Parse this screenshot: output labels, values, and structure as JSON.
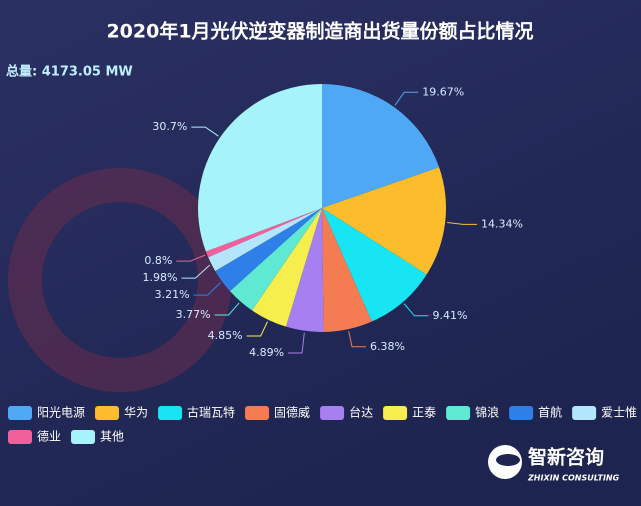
{
  "chart_data": {
    "type": "pie",
    "title": "2020年1月光伏逆变器制造商出货量份额占比情况",
    "subtitle": "总量: 4173.05 MW",
    "categories": [
      "阳光电源",
      "华为",
      "古瑞瓦特",
      "固德威",
      "台达",
      "正泰",
      "锦浪",
      "首航",
      "爱士惟",
      "德业",
      "其他"
    ],
    "values": [
      19.67,
      14.34,
      9.41,
      6.38,
      4.89,
      4.85,
      3.77,
      3.21,
      1.98,
      0.8,
      30.7
    ],
    "value_labels": [
      "19.67%",
      "14.34%",
      "9.41%",
      "6.38%",
      "4.89%",
      "4.85%",
      "3.77%",
      "3.21%",
      "1.98%",
      "0.8%",
      "30.7%"
    ],
    "colors": [
      "#4fa8f6",
      "#fbbd2c",
      "#17e5f4",
      "#f47b52",
      "#a67ff0",
      "#f6ee4c",
      "#5fe9d2",
      "#2f7fe9",
      "#b4e6fb",
      "#f2609c",
      "#a6f3f9"
    ],
    "legend": "bottom",
    "logo": {
      "name": "智新咨询",
      "subtitle": "ZHIXIN CONSULTING"
    }
  }
}
